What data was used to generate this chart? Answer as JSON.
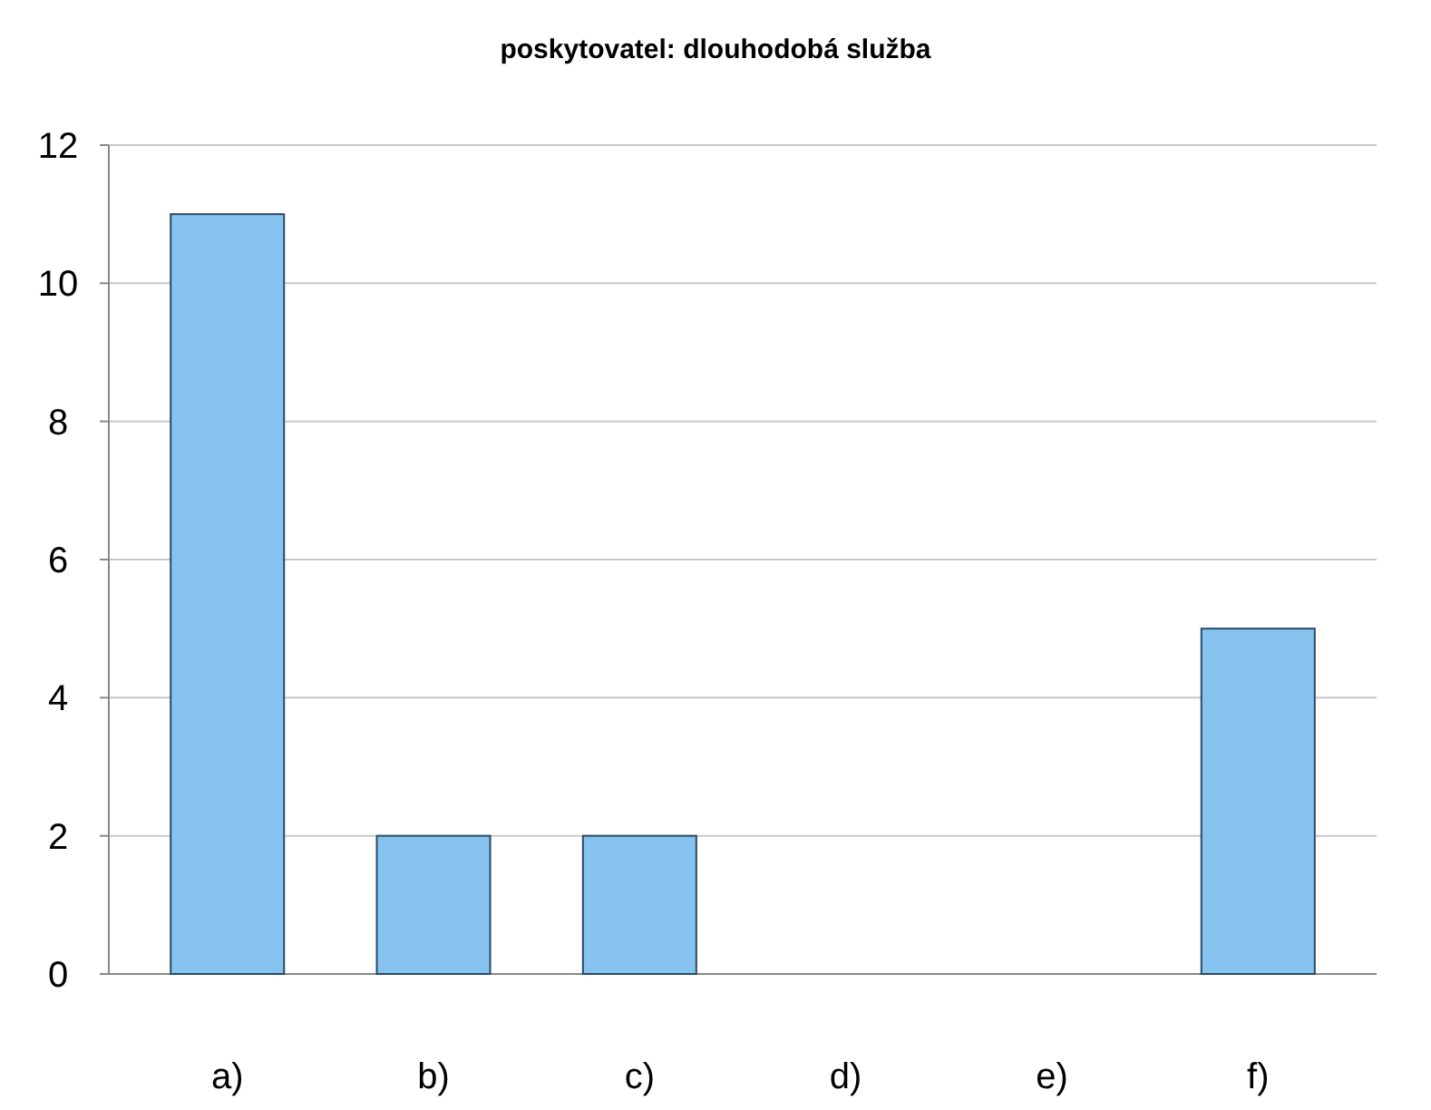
{
  "chart_data": {
    "type": "bar",
    "title": "poskytovatel: dlouhodobá služba",
    "categories": [
      "a)",
      "b)",
      "c)",
      "d)",
      "e)",
      "f)"
    ],
    "values": [
      11,
      2,
      2,
      0,
      0,
      5
    ],
    "color": "#86c3ee",
    "ylim": [
      0,
      12
    ],
    "yticks": [
      0,
      2,
      4,
      6,
      8,
      10,
      12
    ],
    "grid": "y"
  }
}
